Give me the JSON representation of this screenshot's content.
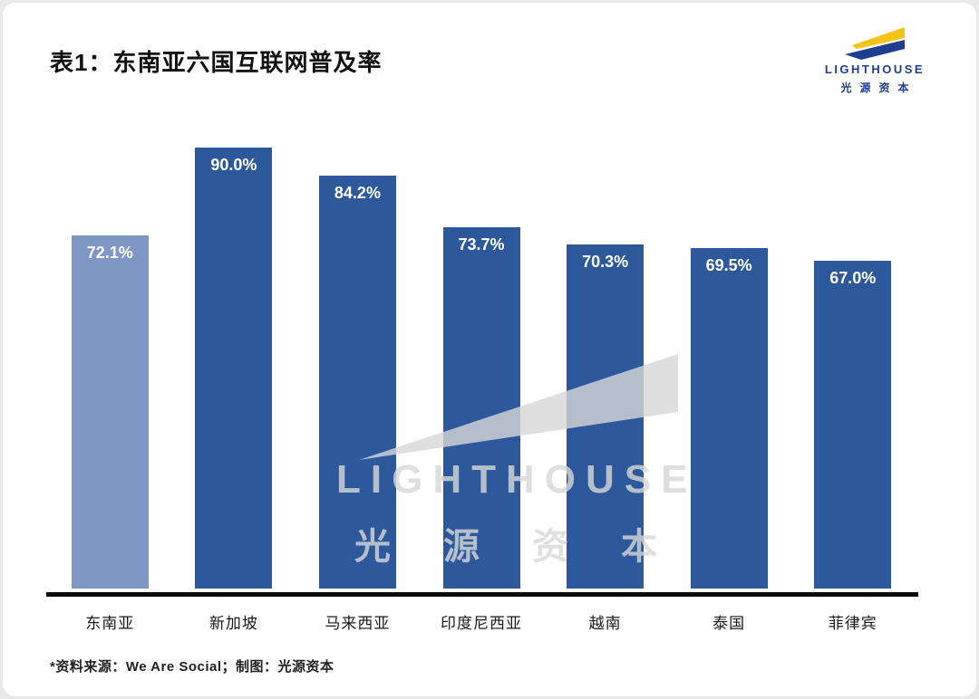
{
  "header": {
    "title": "表1：东南亚六国互联网普及率"
  },
  "logo": {
    "name_en": "LIGHTHOUSE",
    "name_cn": "光源资本",
    "blue": "#1e3e8e",
    "yellow": "#f3c318"
  },
  "chart_data": {
    "type": "bar",
    "title": "表1：东南亚六国互联网普及率",
    "categories": [
      "东南亚",
      "新加坡",
      "马来西亚",
      "印度尼西亚",
      "越南",
      "泰国",
      "菲律宾"
    ],
    "values": [
      72.1,
      90.0,
      84.2,
      73.7,
      70.3,
      69.5,
      67.0
    ],
    "value_labels": [
      "72.1%",
      "90.0%",
      "84.2%",
      "73.7%",
      "70.3%",
      "69.5%",
      "67.0%"
    ],
    "bar_colors": [
      "#8096c4",
      "#2d599c",
      "#2d599c",
      "#2d599c",
      "#2d599c",
      "#2d599c",
      "#2d599c"
    ],
    "ylim": [
      0,
      100
    ],
    "y_axis": "hidden",
    "x_axis": "solid black baseline, no ticks",
    "grid": "off",
    "legend": "none",
    "value_label_position": "inside-top",
    "value_label_color": "#ffffff"
  },
  "watermark": {
    "line1": "LIGHTHOUSE",
    "line2": "光源资本"
  },
  "footer": {
    "source": "*资料来源：We Are Social；制图：光源资本"
  }
}
